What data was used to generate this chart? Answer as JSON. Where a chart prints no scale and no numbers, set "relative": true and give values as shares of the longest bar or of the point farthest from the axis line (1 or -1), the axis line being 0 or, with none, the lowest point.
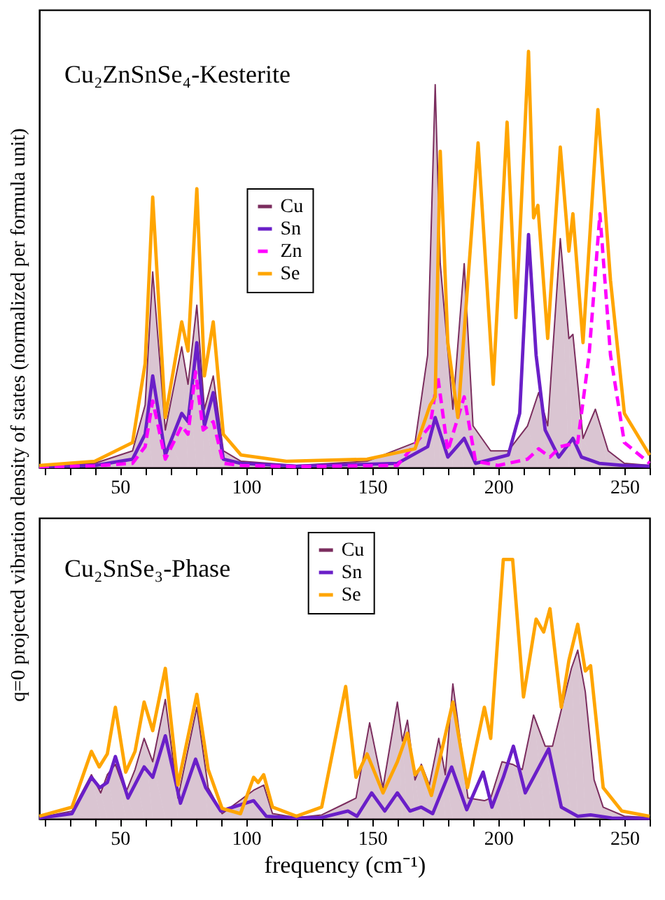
{
  "chart_data": [
    {
      "type": "line",
      "relative": true,
      "title": "Cu₂ZnSnSe₄-Kesterite",
      "ylabel": "q=0 projected vibration density of states (normalized per formula unit)",
      "xlim": [
        18,
        260
      ],
      "xticks": [
        {
          "value": 20,
          "label": null
        },
        {
          "value": 30,
          "label": null
        },
        {
          "value": 40,
          "label": null
        },
        50,
        {
          "value": 60,
          "label": null
        },
        {
          "value": 70,
          "label": null
        },
        {
          "value": 80,
          "label": null
        },
        {
          "value": 90,
          "label": null
        },
        100,
        {
          "value": 110,
          "label": null
        },
        {
          "value": 120,
          "label": null
        },
        {
          "value": 130,
          "label": null
        },
        {
          "value": 140,
          "label": null
        },
        150,
        {
          "value": 160,
          "label": null
        },
        {
          "value": 170,
          "label": null
        },
        {
          "value": 180,
          "label": null
        },
        {
          "value": 190,
          "label": null
        },
        200,
        {
          "value": 210,
          "label": null
        },
        {
          "value": 220,
          "label": null
        },
        {
          "value": 230,
          "label": null
        },
        {
          "value": 240,
          "label": null
        },
        250,
        {
          "value": 260,
          "label": null
        }
      ],
      "grid": false,
      "legend": "left",
      "marker": "none",
      "line_style": "solid",
      "series": [
        {
          "name": "Cu",
          "type": "area",
          "color": "#7b2d5e",
          "x": [
            18,
            40,
            55,
            60,
            63,
            68,
            74.5,
            77,
            80.5,
            83.5,
            87,
            91,
            98,
            120,
            148,
            167,
            172,
            175,
            177,
            182,
            186.5,
            190,
            197,
            204,
            211.6,
            216,
            219.6,
            224.6,
            228,
            229.6,
            233.6,
            238.5,
            243.6,
            250,
            260
          ],
          "values": [
            0.003,
            0.01,
            0.04,
            0.15,
            0.47,
            0.09,
            0.29,
            0.2,
            0.39,
            0.14,
            0.22,
            0.04,
            0.015,
            0.005,
            0.015,
            0.06,
            0.27,
            0.92,
            0.49,
            0.14,
            0.49,
            0.1,
            0.04,
            0.04,
            0.1,
            0.18,
            0.1,
            0.55,
            0.31,
            0.32,
            0.07,
            0.14,
            0.04,
            0.01,
            0.005
          ]
        },
        {
          "name": "Sn",
          "type": "line",
          "color": "#6a1fc8",
          "x": [
            18,
            40,
            55,
            60,
            63,
            68,
            74.5,
            77,
            80.5,
            83.5,
            87,
            91,
            98,
            120,
            160,
            172,
            175,
            180,
            186.5,
            191,
            204,
            208.5,
            212,
            215,
            218.6,
            224,
            229.6,
            233,
            240,
            250,
            260
          ],
          "values": [
            0.002,
            0.005,
            0.02,
            0.08,
            0.22,
            0.03,
            0.13,
            0.11,
            0.3,
            0.1,
            0.18,
            0.02,
            0.01,
            0.003,
            0.01,
            0.05,
            0.12,
            0.025,
            0.07,
            0.01,
            0.03,
            0.13,
            0.56,
            0.27,
            0.09,
            0.025,
            0.07,
            0.025,
            0.01,
            0.005,
            0.003
          ]
        },
        {
          "name": "Zn",
          "type": "line",
          "line_style": "dashed",
          "color": "#ff00ff",
          "x": [
            18,
            40,
            55,
            60,
            63,
            68,
            74.5,
            77,
            80,
            83,
            87,
            91,
            98,
            120,
            160,
            173,
            176,
            180,
            186.5,
            191,
            200,
            211.6,
            216,
            220.5,
            224.6,
            231.5,
            236,
            240.3,
            244.5,
            250,
            260
          ],
          "values": [
            0.002,
            0.004,
            0.01,
            0.05,
            0.16,
            0.02,
            0.1,
            0.08,
            0.23,
            0.09,
            0.11,
            0.01,
            0.005,
            0.002,
            0.005,
            0.1,
            0.22,
            0.04,
            0.17,
            0.015,
            0.005,
            0.02,
            0.045,
            0.025,
            0.05,
            0.06,
            0.27,
            0.61,
            0.27,
            0.06,
            0.01
          ]
        },
        {
          "name": "Se",
          "type": "line",
          "color": "#ffa500",
          "x": [
            18,
            40,
            55,
            60,
            63,
            68,
            74.5,
            77,
            80.5,
            83.5,
            87,
            91,
            98,
            116,
            148,
            167,
            173,
            175,
            177,
            180,
            184,
            192,
            198,
            203.5,
            207,
            212,
            214,
            215.7,
            219.6,
            224.6,
            228,
            229.6,
            233.6,
            239.5,
            244.5,
            250,
            260
          ],
          "values": [
            0.005,
            0.015,
            0.06,
            0.25,
            0.65,
            0.12,
            0.35,
            0.28,
            0.67,
            0.22,
            0.35,
            0.08,
            0.03,
            0.015,
            0.02,
            0.045,
            0.15,
            0.17,
            0.76,
            0.3,
            0.12,
            0.78,
            0.2,
            0.83,
            0.36,
            1.0,
            0.6,
            0.63,
            0.31,
            0.77,
            0.52,
            0.61,
            0.3,
            0.86,
            0.45,
            0.13,
            0.03
          ]
        }
      ]
    },
    {
      "type": "line",
      "relative": true,
      "title": "Cu₂SnSe₃-Phase",
      "xlabel": "frequency (cm⁻¹)",
      "xlim": [
        18,
        260
      ],
      "xticks": [
        {
          "value": 20,
          "label": null
        },
        {
          "value": 30,
          "label": null
        },
        {
          "value": 40,
          "label": null
        },
        50,
        {
          "value": 60,
          "label": null
        },
        {
          "value": 70,
          "label": null
        },
        {
          "value": 80,
          "label": null
        },
        {
          "value": 90,
          "label": null
        },
        100,
        {
          "value": 110,
          "label": null
        },
        {
          "value": 120,
          "label": null
        },
        {
          "value": 130,
          "label": null
        },
        {
          "value": 140,
          "label": null
        },
        150,
        {
          "value": 160,
          "label": null
        },
        {
          "value": 170,
          "label": null
        },
        {
          "value": 180,
          "label": null
        },
        {
          "value": 190,
          "label": null
        },
        200,
        {
          "value": 210,
          "label": null
        },
        {
          "value": 220,
          "label": null
        },
        {
          "value": 230,
          "label": null
        },
        {
          "value": 240,
          "label": null
        },
        250,
        {
          "value": 260,
          "label": null
        }
      ],
      "grid": false,
      "legend": "top",
      "marker": "none",
      "line_style": "solid",
      "series": [
        {
          "name": "Cu",
          "type": "area",
          "color": "#7b2d5e",
          "x": [
            18,
            31,
            38.7,
            42.4,
            45,
            48.2,
            52.3,
            56,
            59.6,
            63,
            68,
            73,
            80.5,
            85,
            90.5,
            103,
            107,
            110.5,
            120,
            130,
            139.5,
            143.6,
            149,
            154.3,
            160,
            162,
            164,
            167,
            169.5,
            172.7,
            176.4,
            179,
            182,
            188,
            194.5,
            197,
            201.5,
            205.7,
            209.5,
            214,
            218.6,
            221.5,
            225,
            229,
            231.5,
            234.5,
            238,
            241.6,
            250,
            260
          ],
          "values": [
            0.005,
            0.03,
            0.17,
            0.1,
            0.17,
            0.21,
            0.1,
            0.19,
            0.31,
            0.22,
            0.46,
            0.08,
            0.43,
            0.12,
            0.02,
            0.11,
            0.13,
            0.02,
            0.005,
            0.015,
            0.06,
            0.08,
            0.37,
            0.12,
            0.45,
            0.3,
            0.38,
            0.15,
            0.21,
            0.13,
            0.31,
            0.17,
            0.52,
            0.08,
            0.07,
            0.08,
            0.22,
            0.21,
            0.19,
            0.4,
            0.28,
            0.28,
            0.42,
            0.58,
            0.65,
            0.49,
            0.15,
            0.045,
            0.01,
            0.005
          ]
        },
        {
          "name": "Sn",
          "type": "line",
          "color": "#6a1fc8",
          "x": [
            18,
            31,
            38.7,
            42,
            45,
            48.2,
            53.2,
            59.6,
            63,
            68,
            74,
            80,
            84,
            90,
            103,
            108,
            120,
            130,
            140.4,
            144,
            149.8,
            155,
            160,
            165,
            169.5,
            174,
            181.5,
            187.5,
            194,
            197.5,
            202,
            206,
            210.7,
            220,
            225,
            231.5,
            236.6,
            245,
            260
          ],
          "values": [
            0.003,
            0.02,
            0.16,
            0.12,
            0.14,
            0.24,
            0.08,
            0.2,
            0.16,
            0.32,
            0.06,
            0.23,
            0.12,
            0.03,
            0.07,
            0.01,
            0.003,
            0.005,
            0.03,
            0.01,
            0.1,
            0.03,
            0.1,
            0.03,
            0.045,
            0.02,
            0.2,
            0.035,
            0.18,
            0.045,
            0.16,
            0.28,
            0.1,
            0.27,
            0.045,
            0.01,
            0.015,
            0.003,
            0.002
          ]
        },
        {
          "name": "Se",
          "type": "line",
          "color": "#ffa500",
          "x": [
            18,
            31,
            38.7,
            41.8,
            45,
            48.2,
            52.3,
            56,
            59.6,
            63,
            68,
            73,
            80.5,
            85,
            90.5,
            97.8,
            103,
            104.8,
            107,
            110.5,
            120,
            130,
            139.5,
            143.6,
            148,
            154.3,
            160,
            164,
            167,
            169.5,
            173.5,
            182,
            187.8,
            194.5,
            197,
            202,
            205.7,
            210,
            215,
            218,
            220.5,
            225,
            228,
            231.5,
            234.5,
            236.6,
            241.6,
            249,
            260
          ],
          "values": [
            0.01,
            0.045,
            0.26,
            0.2,
            0.25,
            0.43,
            0.18,
            0.26,
            0.45,
            0.34,
            0.58,
            0.13,
            0.48,
            0.19,
            0.04,
            0.02,
            0.16,
            0.14,
            0.17,
            0.045,
            0.01,
            0.045,
            0.51,
            0.16,
            0.25,
            0.1,
            0.22,
            0.33,
            0.17,
            0.2,
            0.09,
            0.45,
            0.12,
            0.43,
            0.31,
            1.0,
            1.0,
            0.47,
            0.77,
            0.72,
            0.81,
            0.43,
            0.61,
            0.75,
            0.57,
            0.59,
            0.12,
            0.03,
            0.01
          ]
        }
      ]
    }
  ]
}
